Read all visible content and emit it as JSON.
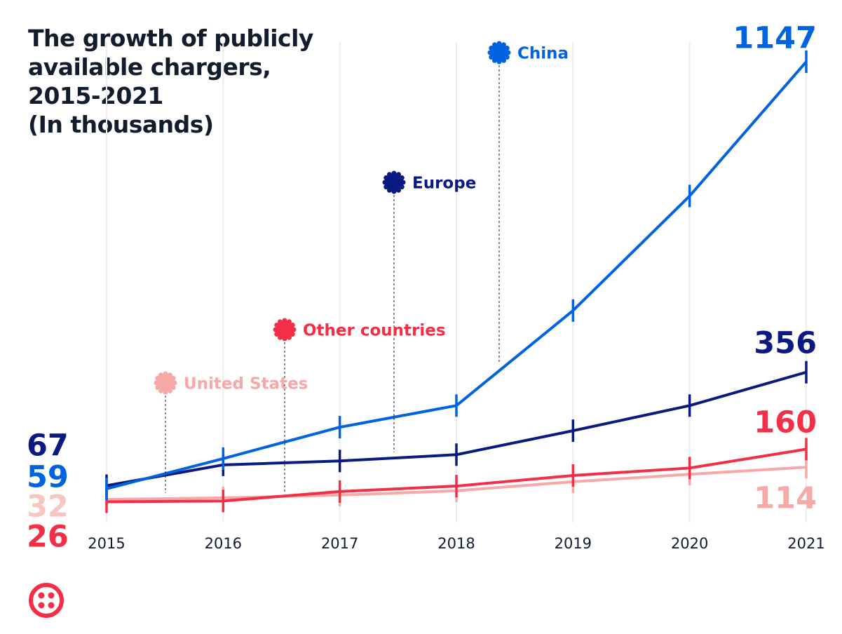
{
  "chart_data": {
    "type": "line",
    "title": "The growth of publicly available chargers, 2015-2021",
    "subtitle": "(In thousands)",
    "categories": [
      "2015",
      "2016",
      "2017",
      "2018",
      "2019",
      "2020",
      "2021"
    ],
    "series": [
      {
        "name": "China",
        "color": "#0263e0",
        "values": [
          59,
          136,
          216,
          271,
          513,
          805,
          1147
        ]
      },
      {
        "name": "Europe",
        "color": "#0b1a80",
        "values": [
          67,
          120,
          130,
          146,
          207,
          271,
          356
        ]
      },
      {
        "name": "Other countries",
        "color": "#f22f46",
        "values": [
          26,
          28,
          52,
          66,
          93,
          112,
          160
        ]
      },
      {
        "name": "United States",
        "color": "#f6a9a6",
        "values": [
          32,
          36,
          43,
          54,
          77,
          96,
          114
        ]
      }
    ],
    "logo": "twilio"
  }
}
